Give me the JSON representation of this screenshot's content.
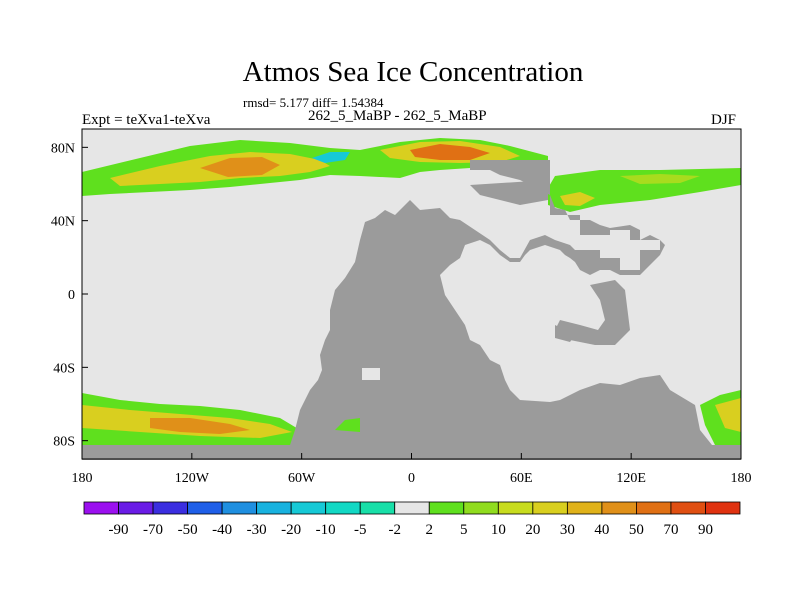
{
  "header": {
    "title": "Atmos Sea Ice Concentration",
    "stats": "rmsd= 5.177 diff= 1.54384",
    "expt": "Expt = teXva1-teXva",
    "period": "262_5_MaBP - 262_5_MaBP",
    "season": "DJF"
  },
  "chart_data": {
    "type": "heatmap",
    "title": "Atmos Sea Ice Concentration",
    "subtitle": "262_5_MaBP - 262_5_MaBP",
    "xlim": [
      -180,
      180
    ],
    "ylim": [
      -90,
      90
    ],
    "x_ticks": [
      {
        "value": -180,
        "label": "180"
      },
      {
        "value": -120,
        "label": "120W"
      },
      {
        "value": -60,
        "label": "60W"
      },
      {
        "value": 0,
        "label": "0"
      },
      {
        "value": 60,
        "label": "60E"
      },
      {
        "value": 120,
        "label": "120E"
      },
      {
        "value": 180,
        "label": "180"
      }
    ],
    "y_ticks": [
      {
        "value": 80,
        "label": "80N"
      },
      {
        "value": 40,
        "label": "40N"
      },
      {
        "value": 0,
        "label": "0"
      },
      {
        "value": -40,
        "label": "40S"
      },
      {
        "value": -80,
        "label": "80S"
      }
    ],
    "colorbar": {
      "labels": [
        "-90",
        "-70",
        "-50",
        "-40",
        "-30",
        "-20",
        "-10",
        "-5",
        "-2",
        "2",
        "5",
        "10",
        "20",
        "30",
        "40",
        "50",
        "70",
        "90"
      ],
      "colors": [
        "#9b10ef",
        "#6a1ce6",
        "#3b2ee0",
        "#1f5fe8",
        "#1f8fe0",
        "#18b2df",
        "#16c9d6",
        "#12d8c4",
        "#18dfa8",
        "#e6e6e6",
        "#5fe01e",
        "#90dc1e",
        "#c8dc1e",
        "#d9cf1f",
        "#e0b21a",
        "#e09019",
        "#e07014",
        "#e04f12",
        "#e03210"
      ]
    },
    "colors": {
      "land": "#9b9b9b",
      "ocean_no_change": "#e6e6e6",
      "green": "#5fe01e",
      "yellow_green": "#a8dc1e",
      "yellow": "#d9cf1f",
      "orange": "#e09019",
      "red_orange": "#e07014",
      "cyan": "#16c9d6"
    }
  }
}
